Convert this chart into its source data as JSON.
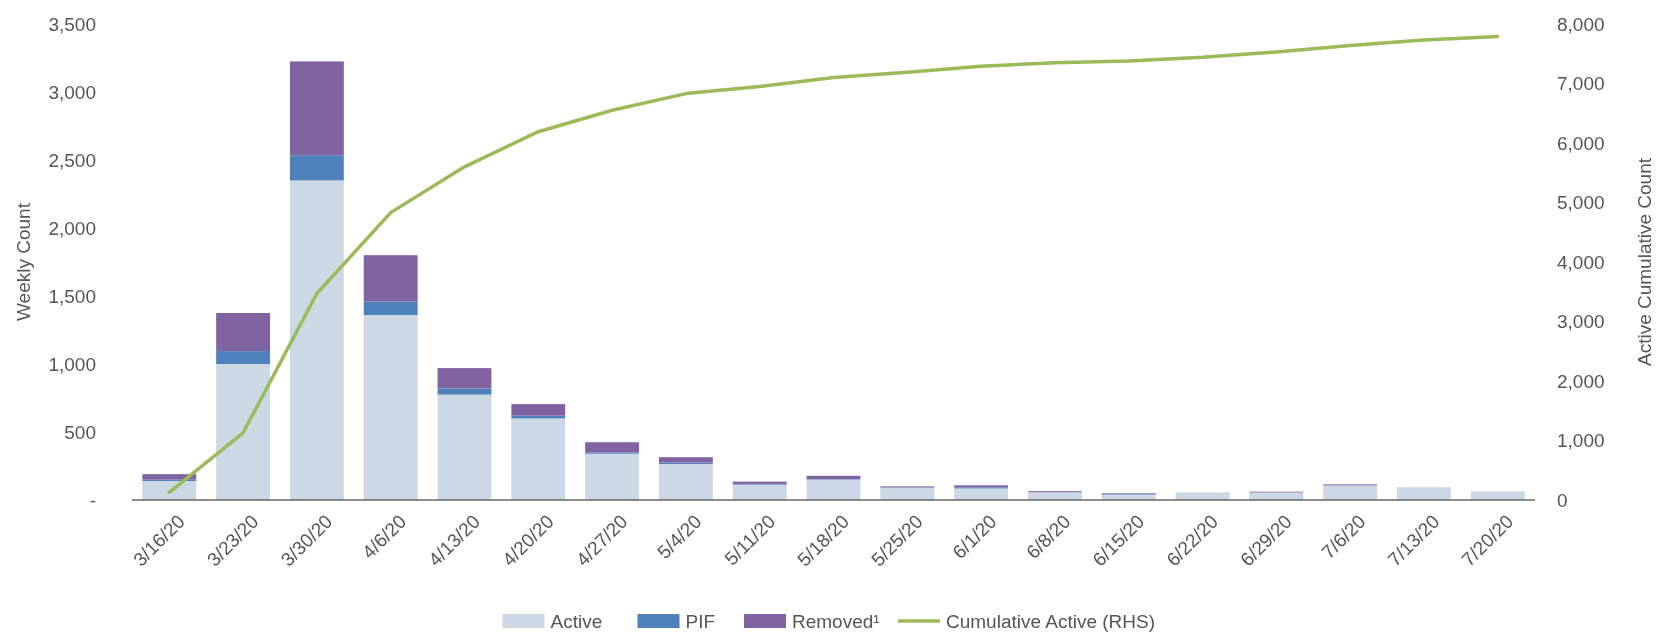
{
  "chart_data": {
    "type": "bar",
    "stacked": true,
    "ylabel": "Weekly Count",
    "y2label": "Active Cumulative Count",
    "categories": [
      "3/16/20",
      "3/23/20",
      "3/30/20",
      "4/6/20",
      "4/13/20",
      "4/20/20",
      "4/27/20",
      "5/4/20",
      "5/11/20",
      "5/18/20",
      "5/25/20",
      "6/1/20",
      "6/8/20",
      "6/15/20",
      "6/22/20",
      "6/29/20",
      "7/6/20",
      "7/13/20",
      "7/20/20"
    ],
    "series": [
      {
        "name": "Active",
        "color": "#ccd8e3",
        "values": [
          140,
          1000,
          2350,
          1360,
          775,
          600,
          340,
          265,
          113,
          150,
          90,
          85,
          57,
          40,
          56,
          55,
          107,
          94,
          64
        ]
      },
      {
        "name": "PIF",
        "color": "#4f81bd",
        "values": [
          10,
          95,
          185,
          100,
          45,
          20,
          10,
          10,
          5,
          3,
          2,
          8,
          null,
          5,
          null,
          null,
          null,
          null,
          null
        ]
      },
      {
        "name": "Removed¹",
        "color": "#8064a2",
        "values": [
          40,
          280,
          690,
          340,
          150,
          85,
          75,
          40,
          17,
          25,
          8,
          15,
          8,
          5,
          null,
          6,
          8,
          null,
          null
        ]
      },
      {
        "name": "Cumulative Active (RHS)",
        "type": "line",
        "axis": "y2",
        "color": "#9bbb59",
        "values": [
          130,
          1130,
          3470,
          4830,
          5600,
          6190,
          6550,
          6830,
          6950,
          7100,
          7190,
          7290,
          7350,
          7380,
          7440,
          7530,
          7640,
          7730,
          7790
        ]
      }
    ],
    "ylim": [
      0,
      3500
    ],
    "yticks": [
      {
        "value": 0,
        "label": "-"
      },
      {
        "value": 500,
        "label": "500"
      },
      {
        "value": 1000,
        "label": "1,000"
      },
      {
        "value": 1500,
        "label": "1,500"
      },
      {
        "value": 2000,
        "label": "2,000"
      },
      {
        "value": 2500,
        "label": "2,500"
      },
      {
        "value": 3000,
        "label": "3,000"
      },
      {
        "value": 3500,
        "label": "3,500"
      }
    ],
    "y2lim": [
      0,
      8000
    ],
    "y2ticks": [
      0,
      {
        "value": 1000,
        "label": "1,000"
      },
      {
        "value": 2000,
        "label": "2,000"
      },
      {
        "value": 3000,
        "label": "3,000"
      },
      {
        "value": 4000,
        "label": "4,000"
      },
      {
        "value": 5000,
        "label": "5,000"
      },
      {
        "value": 6000,
        "label": "6,000"
      },
      {
        "value": 7000,
        "label": "7,000"
      },
      {
        "value": 8000,
        "label": "8,000"
      }
    ],
    "grid": false,
    "legend": "bottom",
    "marker": "none",
    "line_style": "solid"
  }
}
